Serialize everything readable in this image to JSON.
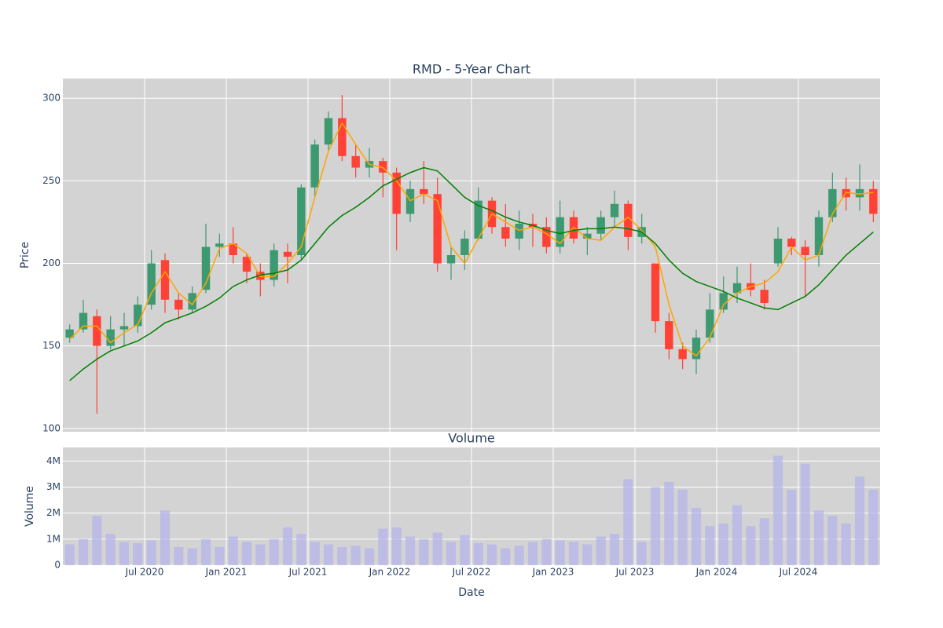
{
  "chart_data": [
    {
      "type": "candlestick",
      "title": "RMD - 5-Year Chart",
      "ylabel": "Price",
      "x": [
        "2020-01",
        "2020-02",
        "2020-03",
        "2020-04",
        "2020-05",
        "2020-06",
        "2020-07",
        "2020-08",
        "2020-09",
        "2020-10",
        "2020-11",
        "2020-12",
        "2021-01",
        "2021-02",
        "2021-03",
        "2021-04",
        "2021-05",
        "2021-06",
        "2021-07",
        "2021-08",
        "2021-09",
        "2021-10",
        "2021-11",
        "2021-12",
        "2022-01",
        "2022-02",
        "2022-03",
        "2022-04",
        "2022-05",
        "2022-06",
        "2022-07",
        "2022-08",
        "2022-09",
        "2022-10",
        "2022-11",
        "2022-12",
        "2023-01",
        "2023-02",
        "2023-03",
        "2023-04",
        "2023-05",
        "2023-06",
        "2023-07",
        "2023-08",
        "2023-09",
        "2023-10",
        "2023-11",
        "2023-12",
        "2024-01",
        "2024-02",
        "2024-03",
        "2024-04",
        "2024-05",
        "2024-06",
        "2024-07",
        "2024-08",
        "2024-09",
        "2024-10",
        "2024-11",
        "2024-12"
      ],
      "open": [
        155,
        160,
        168,
        150,
        160,
        162,
        175,
        202,
        178,
        172,
        184,
        210,
        212,
        204,
        195,
        190,
        207,
        205,
        246,
        272,
        288,
        265,
        258,
        262,
        255,
        230,
        245,
        242,
        200,
        205,
        215,
        238,
        222,
        215,
        224,
        222,
        210,
        228,
        215,
        218,
        228,
        236,
        216,
        200,
        165,
        148,
        142,
        155,
        172,
        182,
        188,
        184,
        200,
        215,
        210,
        205,
        228,
        245,
        240,
        245
      ],
      "high": [
        163,
        178,
        172,
        168,
        170,
        180,
        208,
        206,
        182,
        186,
        224,
        218,
        222,
        206,
        200,
        212,
        212,
        248,
        275,
        292,
        302,
        272,
        270,
        264,
        258,
        250,
        262,
        252,
        210,
        220,
        246,
        240,
        236,
        232,
        230,
        228,
        238,
        232,
        222,
        232,
        244,
        238,
        230,
        200,
        170,
        152,
        160,
        182,
        192,
        198,
        200,
        190,
        222,
        216,
        214,
        232,
        255,
        252,
        260,
        250
      ],
      "low": [
        152,
        158,
        109,
        148,
        150,
        158,
        172,
        170,
        166,
        170,
        182,
        204,
        200,
        188,
        180,
        186,
        188,
        202,
        240,
        268,
        262,
        252,
        252,
        240,
        208,
        225,
        236,
        195,
        190,
        196,
        214,
        218,
        210,
        208,
        210,
        206,
        206,
        212,
        205,
        214,
        222,
        208,
        212,
        158,
        142,
        136,
        133,
        152,
        170,
        176,
        180,
        172,
        198,
        205,
        180,
        198,
        225,
        232,
        232,
        225
      ],
      "close": [
        160,
        170,
        150,
        160,
        162,
        175,
        200,
        178,
        172,
        182,
        210,
        212,
        205,
        195,
        190,
        208,
        204,
        246,
        272,
        288,
        265,
        258,
        262,
        255,
        230,
        245,
        242,
        200,
        205,
        215,
        238,
        222,
        215,
        224,
        222,
        210,
        228,
        215,
        218,
        228,
        236,
        216,
        222,
        165,
        148,
        142,
        155,
        172,
        182,
        188,
        184,
        176,
        215,
        210,
        205,
        228,
        245,
        240,
        245,
        230
      ],
      "increasing_color": "#3d9970",
      "decreasing_color": "#ff4136",
      "lines": [
        {
          "color": "#ffa500",
          "values": [
            154,
            162,
            162,
            152,
            158,
            163,
            182,
            195,
            182,
            175,
            188,
            209,
            212,
            206,
            192,
            192,
            200,
            210,
            240,
            268,
            285,
            272,
            260,
            258,
            250,
            238,
            242,
            238,
            210,
            200,
            215,
            230,
            225,
            220,
            222,
            218,
            212,
            222,
            215,
            214,
            222,
            228,
            220,
            210,
            175,
            150,
            144,
            155,
            175,
            182,
            186,
            188,
            195,
            210,
            202,
            205,
            230,
            243,
            242,
            243
          ]
        },
        {
          "color": "#008000",
          "values": [
            129,
            136,
            142,
            147,
            150,
            153,
            158,
            164,
            167,
            170,
            174,
            179,
            186,
            190,
            193,
            194,
            196,
            202,
            212,
            222,
            229,
            234,
            240,
            247,
            251,
            255,
            258,
            256,
            248,
            240,
            235,
            232,
            228,
            225,
            223,
            220,
            218,
            220,
            221,
            221,
            222,
            221,
            219,
            212,
            202,
            194,
            189,
            186,
            183,
            179,
            176,
            173,
            172,
            176,
            180,
            187,
            196,
            205,
            212,
            219
          ]
        }
      ],
      "xlim": [
        "2020-01",
        "2025-01"
      ],
      "ylim": [
        98,
        312
      ],
      "yticks": [
        100,
        150,
        200,
        250,
        300
      ],
      "grid": true
    },
    {
      "type": "bar",
      "title": "Volume",
      "xlabel": "Date",
      "ylabel": "Volume",
      "color": "rgba(180,180,235,0.75)",
      "values": [
        800000,
        1000000,
        1900000,
        1200000,
        900000,
        850000,
        950000,
        2100000,
        700000,
        650000,
        1000000,
        700000,
        1100000,
        900000,
        800000,
        1000000,
        1450000,
        1200000,
        900000,
        800000,
        700000,
        750000,
        650000,
        1400000,
        1450000,
        1100000,
        1000000,
        1250000,
        900000,
        1150000,
        850000,
        800000,
        650000,
        750000,
        900000,
        1000000,
        950000,
        900000,
        800000,
        1100000,
        1200000,
        3300000,
        900000,
        3000000,
        3200000,
        2900000,
        2200000,
        1500000,
        1600000,
        2300000,
        1500000,
        1800000,
        4200000,
        2900000,
        3900000,
        2100000,
        1900000,
        1600000,
        3400000,
        2900000
      ],
      "xlim": [
        "2020-01",
        "2025-01"
      ],
      "xticks": [
        {
          "value": "2020-07",
          "label": "Jul 2020"
        },
        {
          "value": "2021-01",
          "label": "Jan 2021"
        },
        {
          "value": "2021-07",
          "label": "Jul 2021"
        },
        {
          "value": "2022-01",
          "label": "Jan 2022"
        },
        {
          "value": "2022-07",
          "label": "Jul 2022"
        },
        {
          "value": "2023-01",
          "label": "Jan 2023"
        },
        {
          "value": "2023-07",
          "label": "Jul 2023"
        },
        {
          "value": "2024-01",
          "label": "Jan 2024"
        },
        {
          "value": "2024-07",
          "label": "Jul 2024"
        }
      ],
      "ylim": [
        0,
        4520000
      ],
      "yticks": [
        0,
        {
          "value": 1000000,
          "label": "1M"
        },
        {
          "value": 2000000,
          "label": "2M"
        },
        {
          "value": 3000000,
          "label": "3M"
        },
        {
          "value": 4000000,
          "label": "4M"
        }
      ],
      "grid": true
    }
  ]
}
